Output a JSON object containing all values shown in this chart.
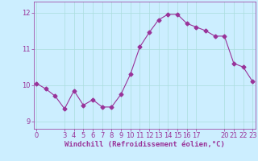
{
  "x": [
    0,
    1,
    2,
    3,
    4,
    5,
    6,
    7,
    8,
    9,
    10,
    11,
    12,
    13,
    14,
    15,
    16,
    17,
    18,
    19,
    20,
    21,
    22,
    23
  ],
  "y": [
    10.05,
    9.9,
    9.7,
    9.35,
    9.85,
    9.45,
    9.6,
    9.4,
    9.4,
    9.75,
    10.3,
    11.05,
    11.45,
    11.8,
    11.95,
    11.95,
    11.7,
    11.6,
    11.5,
    11.35,
    11.35,
    10.6,
    10.5,
    10.1
  ],
  "line_color": "#993399",
  "marker": "D",
  "markersize": 2.5,
  "linewidth": 0.8,
  "background_color": "#cceeff",
  "grid_color": "#aadddd",
  "xlabel": "Windchill (Refroidissement éolien,°C)",
  "xlabel_color": "#993399",
  "xlabel_fontsize": 6.5,
  "xticks": [
    0,
    3,
    4,
    5,
    6,
    7,
    8,
    9,
    10,
    11,
    12,
    13,
    14,
    15,
    16,
    17,
    20,
    21,
    22,
    23
  ],
  "yticks": [
    9,
    10,
    11,
    12
  ],
  "ylim": [
    8.8,
    12.3
  ],
  "xlim": [
    -0.3,
    23.3
  ],
  "tick_color": "#993399",
  "tick_fontsize": 6.0
}
